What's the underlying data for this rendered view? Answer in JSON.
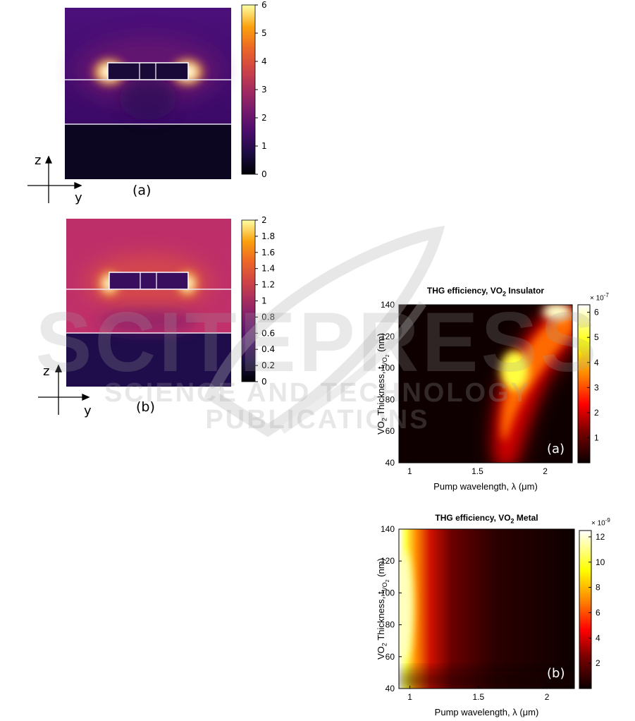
{
  "watermark": {
    "big": "SCITEPRESS",
    "small": "SCIENCE AND TECHNOLOGY PUBLICATIONS"
  },
  "field_maps": [
    {
      "panel_label": "(a)",
      "axis_z": "z",
      "axis_y": "y",
      "colorbar": {
        "ticks": [
          "6",
          "5",
          "4",
          "3",
          "2",
          "1",
          "0"
        ],
        "range": [
          0,
          6
        ]
      }
    },
    {
      "panel_label": "(b)",
      "axis_z": "z",
      "axis_y": "y",
      "colorbar": {
        "ticks": [
          "2",
          "1.8",
          "1.6",
          "1.4",
          "1.2",
          "1",
          "0.8",
          "0.6",
          "0.4",
          "0.2",
          "0"
        ],
        "range": [
          0,
          2
        ]
      }
    }
  ],
  "chart_data": [
    {
      "type": "heatmap",
      "title": {
        "pre": "THG efficiency, VO",
        "sub": "2",
        "post": " Insulator"
      },
      "panel_label": "(a)",
      "xlabel": "Pump wavelength,  λ (μm)",
      "ylabel": {
        "pre": "VO",
        "sub1": "2",
        "mid": " Thickness, t",
        "sub2": "VO",
        "sub3": "2",
        "post": " (nm)"
      },
      "xlim": [
        0.92,
        2.2
      ],
      "ylim": [
        40,
        140
      ],
      "x_ticks": [
        "1",
        "1.5",
        "2"
      ],
      "x_tick_values": [
        1,
        1.5,
        2
      ],
      "y_ticks": [
        "40",
        "60",
        "80",
        "100",
        "120",
        "140"
      ],
      "y_tick_values": [
        40,
        60,
        80,
        100,
        120,
        140
      ],
      "colorbar": {
        "multiplier": "× 10",
        "exponent": "-7",
        "ticks": [
          "1",
          "2",
          "3",
          "4",
          "5",
          "6"
        ],
        "tick_values": [
          1,
          2,
          3,
          4,
          5,
          6
        ],
        "range": [
          0,
          6.3
        ],
        "colormap": "hot"
      },
      "features": "bright band from about 1.7 μm at 40 nm to about 2.1 μm at 140 nm; maxima near 1.8 μm / 100 nm and 2.1 μm / 140 nm"
    },
    {
      "type": "heatmap",
      "title": {
        "pre": "THG efficiency, VO",
        "sub": "2",
        "post": " Metal"
      },
      "panel_label": "(b)",
      "xlabel": "Pump wavelength,  λ (μm)",
      "ylabel": {
        "pre": "VO",
        "sub1": "2",
        "mid": " Thickness, t",
        "sub2": "VO",
        "sub3": "2",
        "post": " (nm)"
      },
      "xlim": [
        0.92,
        2.2
      ],
      "ylim": [
        40,
        140
      ],
      "x_ticks": [
        "1",
        "1.5",
        "2"
      ],
      "x_tick_values": [
        1,
        1.5,
        2
      ],
      "y_ticks": [
        "40",
        "60",
        "80",
        "100",
        "120",
        "140"
      ],
      "y_tick_values": [
        40,
        60,
        80,
        100,
        120,
        140
      ],
      "colorbar": {
        "multiplier": "× 10",
        "exponent": "-9",
        "ticks": [
          "2",
          "4",
          "6",
          "8",
          "10",
          "12"
        ],
        "tick_values": [
          2,
          4,
          6,
          8,
          10,
          12
        ],
        "range": [
          0,
          12.5
        ],
        "colormap": "hot"
      },
      "features": "maximum at shortest wavelengths (≈0.95–1.05 μm) for 60–130 nm, decaying toward longer wavelengths"
    }
  ]
}
